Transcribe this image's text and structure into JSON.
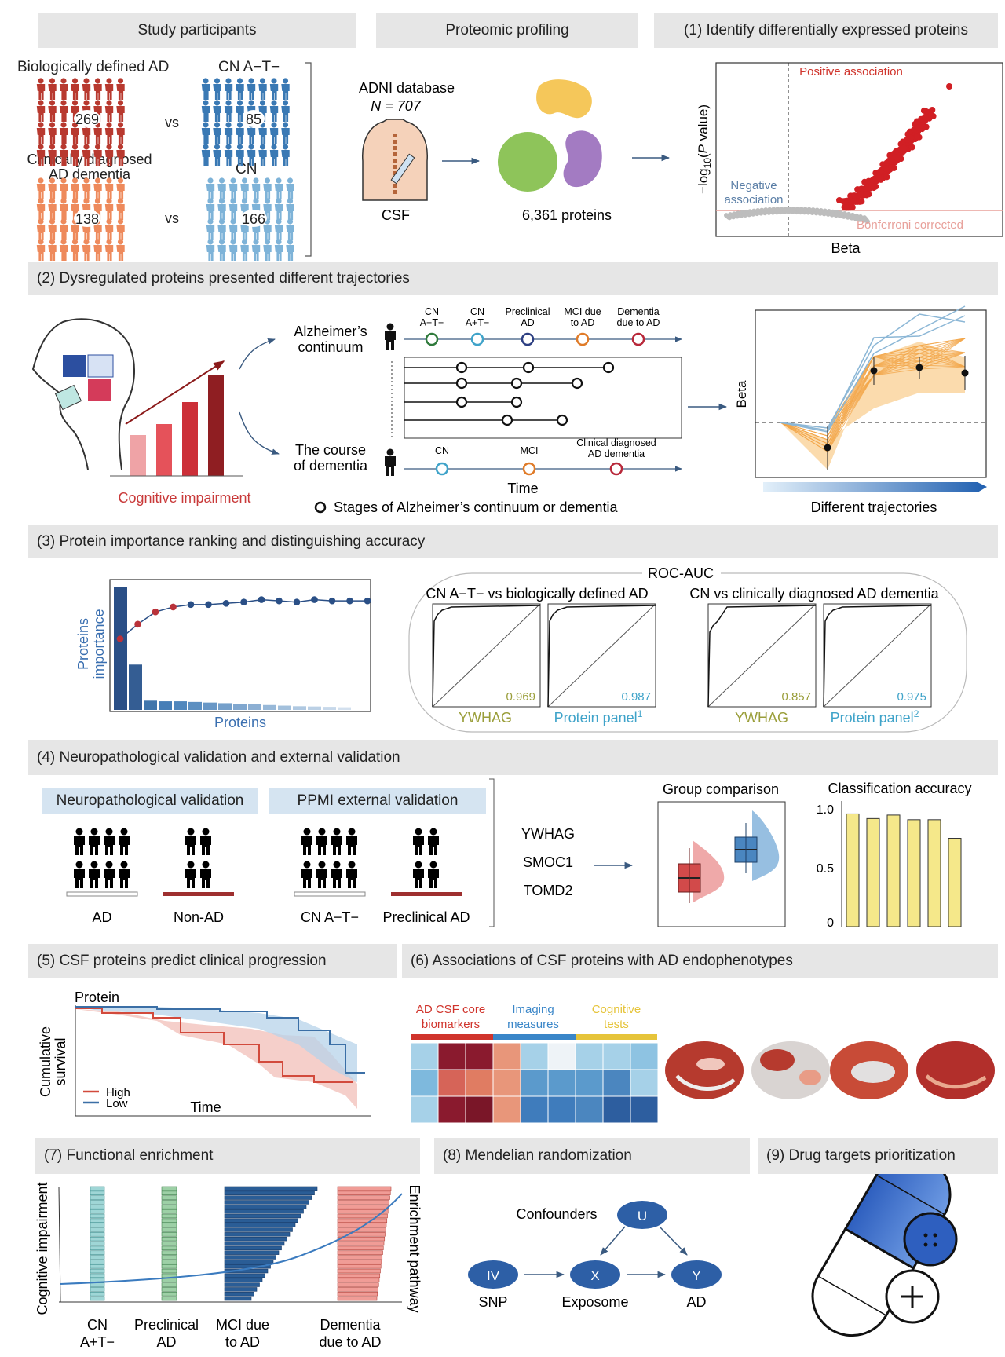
{
  "colors": {
    "red": "#c0362c",
    "orange": "#ef8a5b",
    "blue": "#3b78b6",
    "lightblue": "#7fb3d8",
    "navy": "#2a4f86",
    "header_bg": "#e6e6e6",
    "sub_bg": "#d5e4f1",
    "yellow": "#f5e88a"
  },
  "s0": {
    "h_participants": "Study participants",
    "h_profiling": "Proteomic profiling",
    "h_dep": "(1) Identify differentially expressed proteins",
    "bio_ad": "Biologically defined AD",
    "cn_at": "CN A−T−",
    "n269": "269",
    "n85": "85",
    "vs": "vs",
    "clin_ad": "Clinically diagnosed\nAD dementia",
    "cn": "CN",
    "n138": "138",
    "n166": "166",
    "adni": "ADNI database",
    "n707": "N = 707",
    "csf": "CSF",
    "proteins": "6,361 proteins",
    "pos_assoc": "Positive association",
    "neg_assoc": "Negative\nassociation",
    "bonf": "Bonferroni corrected",
    "ylabel": "−log10(P value)",
    "xlabel": "Beta"
  },
  "s2": {
    "header": "(2) Dysregulated proteins presented different trajectories",
    "alz_cont": "Alzheimer’s\ncontinuum",
    "course": "The course\nof dementia",
    "stages": [
      "CN\nA−T−",
      "CN\nA+T−",
      "Preclinical\nAD",
      "MCI due\nto AD",
      "Dementia\ndue to AD"
    ],
    "stages2": [
      "CN",
      "MCI",
      "Clinical diagnosed\nAD dementia"
    ],
    "time": "Time",
    "legend": "Stages of Alzheimer’s continuum or dementia",
    "cog": "Cognitive impairment",
    "beta": "Beta",
    "traj": "Different trajectories"
  },
  "s3": {
    "header": "(3) Protein importance ranking and distinguishing accuracy",
    "ylabel": "Proteins\nimportance",
    "xlabel": "Proteins",
    "roc": "ROC-AUC",
    "g1": "CN A−T− vs biologically defined AD",
    "g2": "CN vs clinically diagnosed AD dementia",
    "auc": [
      "0.969",
      "0.987",
      "0.857",
      "0.975"
    ],
    "lab": [
      "YWHAG",
      "Protein panel",
      "YWHAG",
      "Protein panel"
    ],
    "sup": [
      "1",
      "2"
    ]
  },
  "s4": {
    "header": "(4)  Neuropathological validation and external validation",
    "neuro": "Neuropathological validation",
    "ppmi": "PPMI external validation",
    "groups": [
      "AD",
      "Non-AD",
      "CN A−T−",
      "Preclinical AD"
    ],
    "proteins": [
      "YWHAG",
      "SMOC1",
      "TOMD2"
    ],
    "gc": "Group comparison",
    "ca": "Classification accuracy",
    "ca_ticks": [
      "1.0",
      "0.5",
      "0"
    ]
  },
  "s5": {
    "header": "(5)  CSF proteins predict clinical progression",
    "protein": "Protein",
    "ylabel": "Cumulative\nsurvival",
    "high": "High",
    "low": "Low",
    "time": "Time"
  },
  "s6": {
    "header": "(6) Associations of CSF proteins with AD endophenotypes",
    "cat1": "AD CSF core\nbiomarkers",
    "cat2": "Imaging\nmeasures",
    "cat3": "Cognitive\ntests"
  },
  "s7": {
    "header": "(7) Functional enrichment",
    "ylabel": "Cognitive impairment",
    "rlabel": "Enrichment pathway",
    "x": [
      "CN\nA+T−",
      "Preclinical\nAD",
      "MCI due\nto AD",
      "Dementia\ndue to AD"
    ]
  },
  "s8": {
    "header": "(8) Mendelian randomization",
    "conf": "Confounders",
    "u": "U",
    "iv": "IV",
    "x": "X",
    "y": "Y",
    "snp": "SNP",
    "exposome": "Exposome",
    "ad": "AD"
  },
  "s9": {
    "header": "(9) Drug targets prioritization"
  },
  "chart_data": [
    {
      "type": "bar",
      "title": "Protein importance ranking",
      "xlabel": "Proteins",
      "ylabel": "Proteins importance",
      "values": [
        1.0,
        0.37,
        0.075,
        0.07,
        0.07,
        0.065,
        0.06,
        0.055,
        0.05,
        0.045,
        0.04,
        0.035,
        0.03,
        0.028,
        0.025,
        0.022
      ],
      "cumulative_line": [
        0.58,
        0.7,
        0.8,
        0.84,
        0.86,
        0.86,
        0.87,
        0.88,
        0.9,
        0.89,
        0.88,
        0.9,
        0.89,
        0.89,
        0.89
      ]
    },
    {
      "type": "bar",
      "title": "Classification accuracy",
      "ylim": [
        0,
        1
      ],
      "values": [
        0.97,
        0.93,
        0.96,
        0.92,
        0.92,
        0.76
      ]
    }
  ]
}
